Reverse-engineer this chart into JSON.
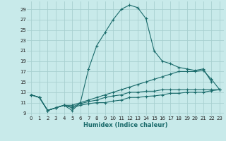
{
  "xlabel": "Humidex (Indice chaleur)",
  "bg_color": "#c8eaea",
  "grid_color": "#a8d0d0",
  "line_color": "#1a6b6b",
  "xlim": [
    -0.5,
    23.5
  ],
  "ylim": [
    8.5,
    30.5
  ],
  "xticks": [
    0,
    1,
    2,
    3,
    4,
    5,
    6,
    7,
    8,
    9,
    10,
    11,
    12,
    13,
    14,
    15,
    16,
    17,
    18,
    19,
    20,
    21,
    22,
    23
  ],
  "yticks": [
    9,
    11,
    13,
    15,
    17,
    19,
    21,
    23,
    25,
    27,
    29
  ],
  "line1_x": [
    0,
    1,
    2,
    3,
    4,
    5,
    6,
    7,
    8,
    9,
    10,
    11,
    12,
    13,
    14,
    15,
    16,
    17,
    18,
    19,
    20,
    21,
    22
  ],
  "line1_y": [
    12.5,
    12.0,
    9.5,
    10.0,
    10.5,
    9.5,
    11.0,
    17.5,
    22.0,
    24.5,
    27.0,
    29.0,
    29.8,
    29.3,
    27.2,
    21.0,
    19.0,
    18.5,
    17.8,
    17.5,
    17.2,
    17.5,
    15.0
  ],
  "line2_x": [
    0,
    1,
    2,
    3,
    4,
    5,
    6,
    7,
    8,
    9,
    10,
    11,
    12,
    13,
    14,
    15,
    16,
    17,
    18,
    19,
    20,
    21,
    22,
    23
  ],
  "line2_y": [
    12.5,
    12.0,
    9.5,
    10.0,
    10.5,
    10.5,
    11.0,
    11.5,
    12.0,
    12.5,
    13.0,
    13.5,
    14.0,
    14.5,
    15.0,
    15.5,
    16.0,
    16.5,
    17.0,
    17.0,
    17.0,
    17.2,
    15.5,
    13.5
  ],
  "line3_x": [
    0,
    1,
    2,
    3,
    4,
    5,
    6,
    7,
    8,
    9,
    10,
    11,
    12,
    13,
    14,
    15,
    16,
    17,
    18,
    19,
    20,
    21,
    22,
    23
  ],
  "line3_y": [
    12.5,
    12.0,
    9.5,
    10.0,
    10.5,
    10.2,
    10.8,
    11.2,
    11.5,
    12.0,
    12.3,
    12.5,
    13.0,
    13.0,
    13.2,
    13.2,
    13.5,
    13.5,
    13.5,
    13.5,
    13.5,
    13.5,
    13.5,
    13.5
  ],
  "line4_x": [
    0,
    1,
    2,
    3,
    4,
    5,
    6,
    7,
    8,
    9,
    10,
    11,
    12,
    13,
    14,
    15,
    16,
    17,
    18,
    19,
    20,
    21,
    22,
    23
  ],
  "line4_y": [
    12.5,
    12.0,
    9.5,
    10.0,
    10.5,
    10.0,
    10.5,
    10.8,
    11.0,
    11.0,
    11.3,
    11.5,
    12.0,
    12.0,
    12.2,
    12.3,
    12.5,
    12.8,
    12.8,
    13.0,
    13.0,
    13.0,
    13.3,
    13.5
  ]
}
